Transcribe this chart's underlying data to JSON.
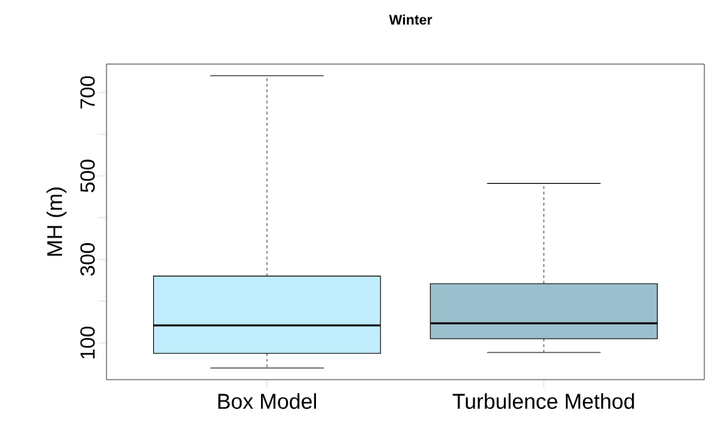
{
  "chart_data": {
    "type": "box",
    "title": "Winter",
    "ylabel": "MH (m)",
    "categories": [
      "Box Model",
      "Turbulence Method"
    ],
    "colors": [
      "#c0ecfc",
      "#9bbfcc"
    ],
    "boxes": [
      {
        "low": 40,
        "q1": 75,
        "median": 142,
        "q3": 260,
        "high": 740
      },
      {
        "low": 77,
        "q1": 110,
        "median": 147,
        "q3": 242,
        "high": 482
      }
    ],
    "ylim": [
      12,
      768
    ],
    "yticks": [
      100,
      {
        "value": 200,
        "label": null
      },
      300,
      {
        "value": 400,
        "label": null
      },
      500,
      {
        "value": 600,
        "label": null
      },
      700
    ],
    "grid": false
  }
}
